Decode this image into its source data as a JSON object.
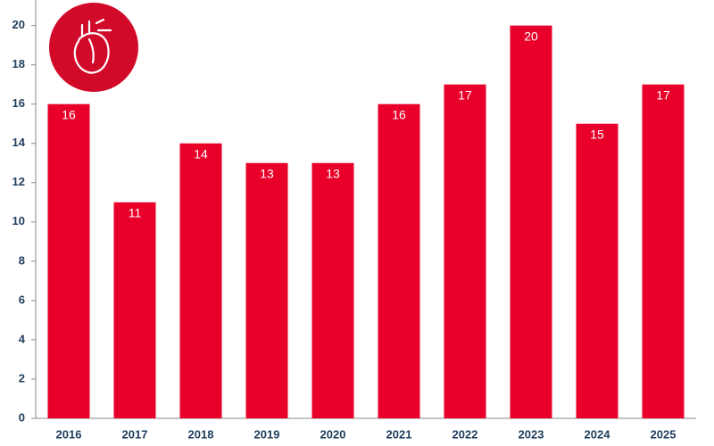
{
  "chart_data": {
    "type": "bar",
    "categories": [
      "2016",
      "2017",
      "2018",
      "2019",
      "2020",
      "2021",
      "2022",
      "2023",
      "2024",
      "2025"
    ],
    "values": [
      16,
      11,
      14,
      13,
      13,
      16,
      17,
      20,
      15,
      17
    ],
    "color": "#e8002a",
    "ylim": [
      0,
      21.3
    ],
    "yticks": [
      0,
      2,
      4,
      6,
      8,
      10,
      12,
      14,
      16,
      18,
      20
    ],
    "grid": false
  }
}
